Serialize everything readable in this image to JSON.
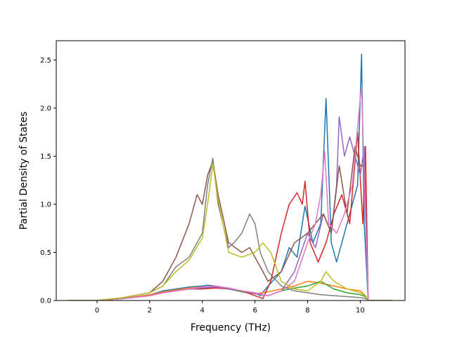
{
  "chart_data": {
    "type": "line",
    "title": "",
    "xlabel": "Frequency (THz)",
    "ylabel": "Partial Density of States",
    "xlim": [
      -1.55,
      11.7
    ],
    "ylim": [
      0,
      2.7
    ],
    "xticks": [
      0,
      2,
      4,
      6,
      8,
      10
    ],
    "yticks": [
      0.0,
      0.5,
      1.0,
      1.5,
      2.0,
      2.5
    ],
    "xtick_labels": [
      "0",
      "2",
      "4",
      "6",
      "8",
      "10"
    ],
    "ytick_labels": [
      "0.0",
      "0.5",
      "1.0",
      "1.5",
      "2.0",
      "2.5"
    ],
    "grid": false,
    "legend": false,
    "series": [
      {
        "color": "#1f77b4",
        "x": [
          -1.1,
          0,
          1,
          2,
          2.5,
          3,
          3.5,
          4,
          4.2,
          4.5,
          5,
          5.5,
          6,
          6.2,
          6.5,
          7,
          7.3,
          7.6,
          7.9,
          8.2,
          8.5,
          8.7,
          8.9,
          9.1,
          9.4,
          9.7,
          9.9,
          10.05,
          10.15,
          10.3,
          11.2
        ],
        "y": [
          0,
          0,
          0.02,
          0.06,
          0.1,
          0.12,
          0.14,
          0.15,
          0.16,
          0.15,
          0.12,
          0.1,
          0.08,
          0.05,
          0.15,
          0.3,
          0.55,
          0.45,
          0.98,
          0.6,
          0.8,
          2.1,
          0.6,
          0.4,
          0.7,
          1.0,
          1.2,
          2.56,
          0.8,
          0,
          0
        ]
      },
      {
        "color": "#ff7f0e",
        "x": [
          -1.1,
          0,
          1,
          2,
          2.5,
          3,
          3.5,
          4,
          4.5,
          5,
          5.5,
          6,
          6.5,
          7,
          7.5,
          8,
          8.5,
          9,
          9.5,
          10,
          10.2,
          10.3,
          11.2
        ],
        "y": [
          0,
          0,
          0.02,
          0.06,
          0.09,
          0.11,
          0.13,
          0.14,
          0.15,
          0.13,
          0.1,
          0.07,
          0.09,
          0.12,
          0.15,
          0.2,
          0.18,
          0.15,
          0.12,
          0.1,
          0.05,
          0,
          0
        ]
      },
      {
        "color": "#2ca02c",
        "x": [
          -1.1,
          0,
          1,
          2,
          2.5,
          3,
          3.5,
          4,
          4.5,
          5,
          5.5,
          6,
          6.5,
          7,
          7.5,
          8,
          8.5,
          9,
          9.5,
          10,
          10.2,
          10.3,
          11.2
        ],
        "y": [
          0,
          0,
          0.02,
          0.05,
          0.08,
          0.1,
          0.12,
          0.13,
          0.14,
          0.12,
          0.09,
          0.07,
          0.05,
          0.1,
          0.13,
          0.15,
          0.2,
          0.12,
          0.08,
          0.06,
          0.04,
          0,
          0
        ]
      },
      {
        "color": "#d62728",
        "x": [
          -1.1,
          0,
          1,
          2,
          2.5,
          3,
          3.5,
          4,
          4.5,
          5,
          5.5,
          6,
          6.3,
          6.6,
          7,
          7.3,
          7.6,
          7.8,
          7.9,
          8.1,
          8.4,
          8.7,
          9,
          9.3,
          9.6,
          9.9,
          10.1,
          10.2,
          10.3,
          11.2
        ],
        "y": [
          0,
          0,
          0.02,
          0.05,
          0.08,
          0.1,
          0.12,
          0.12,
          0.13,
          0.12,
          0.1,
          0.05,
          0.02,
          0.2,
          0.7,
          1.0,
          1.12,
          1.0,
          1.24,
          0.6,
          0.4,
          0.6,
          0.9,
          1.1,
          0.8,
          1.75,
          0.8,
          1.6,
          0,
          0
        ]
      },
      {
        "color": "#9467bd",
        "x": [
          -1.1,
          0,
          1,
          2,
          2.5,
          3,
          3.5,
          4,
          4.5,
          5,
          5.5,
          6,
          6.5,
          7,
          7.5,
          8,
          8.3,
          8.6,
          8.9,
          9.1,
          9.2,
          9.4,
          9.6,
          9.8,
          10,
          10.15,
          10.3,
          11.2
        ],
        "y": [
          0,
          0,
          0.02,
          0.05,
          0.08,
          0.1,
          0.12,
          0.13,
          0.14,
          0.12,
          0.1,
          0.07,
          0.05,
          0.1,
          0.3,
          0.7,
          0.55,
          0.9,
          0.7,
          1.2,
          1.91,
          1.5,
          1.7,
          1.5,
          1.3,
          1.6,
          0,
          0
        ]
      },
      {
        "color": "#8c564b",
        "x": [
          -1.1,
          0,
          1,
          2,
          2.5,
          3,
          3.5,
          3.8,
          4,
          4.2,
          4.4,
          4.6,
          5,
          5.5,
          5.8,
          6,
          6.3,
          6.5,
          7,
          7.5,
          8,
          8.3,
          8.6,
          8.9,
          9.2,
          9.5,
          9.8,
          10,
          10.15,
          10.3,
          11.2
        ],
        "y": [
          0,
          0,
          0.03,
          0.08,
          0.2,
          0.45,
          0.8,
          1.1,
          1.0,
          1.3,
          1.45,
          1.1,
          0.6,
          0.5,
          0.55,
          0.45,
          0.3,
          0.2,
          0.3,
          0.6,
          0.7,
          0.8,
          0.9,
          0.7,
          1.4,
          0.9,
          1.6,
          1.4,
          1.4,
          0,
          0
        ]
      },
      {
        "color": "#e377c2",
        "x": [
          -1.1,
          0,
          1,
          2,
          2.5,
          3,
          3.5,
          4,
          4.5,
          5,
          5.5,
          6,
          6.5,
          7,
          7.5,
          8,
          8.3,
          8.5,
          8.65,
          8.8,
          9.1,
          9.4,
          9.7,
          9.9,
          10.05,
          10.15,
          10.3,
          11.2
        ],
        "y": [
          0,
          0,
          0.02,
          0.05,
          0.08,
          0.1,
          0.12,
          0.14,
          0.15,
          0.13,
          0.1,
          0.08,
          0.05,
          0.1,
          0.2,
          0.6,
          0.8,
          1.1,
          1.55,
          0.8,
          0.7,
          0.9,
          1.2,
          1.8,
          2.24,
          1.3,
          0,
          0
        ]
      },
      {
        "color": "#7f7f7f",
        "x": [
          -1.1,
          0,
          1,
          2,
          2.5,
          3,
          3.5,
          4,
          4.2,
          4.4,
          4.6,
          5,
          5.2,
          5.5,
          5.8,
          6,
          6.2,
          6.5,
          7,
          7.5,
          8,
          8.5,
          9,
          9.5,
          10,
          10.2,
          10.3,
          11.2
        ],
        "y": [
          0,
          0,
          0.03,
          0.08,
          0.15,
          0.35,
          0.45,
          0.7,
          1.2,
          1.48,
          1.0,
          0.55,
          0.6,
          0.7,
          0.9,
          0.8,
          0.5,
          0.3,
          0.15,
          0.1,
          0.08,
          0.06,
          0.05,
          0.04,
          0.03,
          0.02,
          0,
          0
        ]
      },
      {
        "color": "#bcbd22",
        "x": [
          -1.1,
          0,
          1,
          2,
          2.5,
          3,
          3.5,
          4,
          4.2,
          4.4,
          4.6,
          5,
          5.5,
          6,
          6.3,
          6.6,
          7,
          7.5,
          8,
          8.5,
          8.7,
          9,
          9.5,
          10,
          10.2,
          10.3,
          11.2
        ],
        "y": [
          0,
          0,
          0.03,
          0.08,
          0.15,
          0.3,
          0.42,
          0.65,
          1.0,
          1.42,
          1.05,
          0.5,
          0.45,
          0.5,
          0.6,
          0.5,
          0.2,
          0.12,
          0.1,
          0.2,
          0.3,
          0.2,
          0.12,
          0.08,
          0.05,
          0,
          0
        ]
      }
    ]
  }
}
